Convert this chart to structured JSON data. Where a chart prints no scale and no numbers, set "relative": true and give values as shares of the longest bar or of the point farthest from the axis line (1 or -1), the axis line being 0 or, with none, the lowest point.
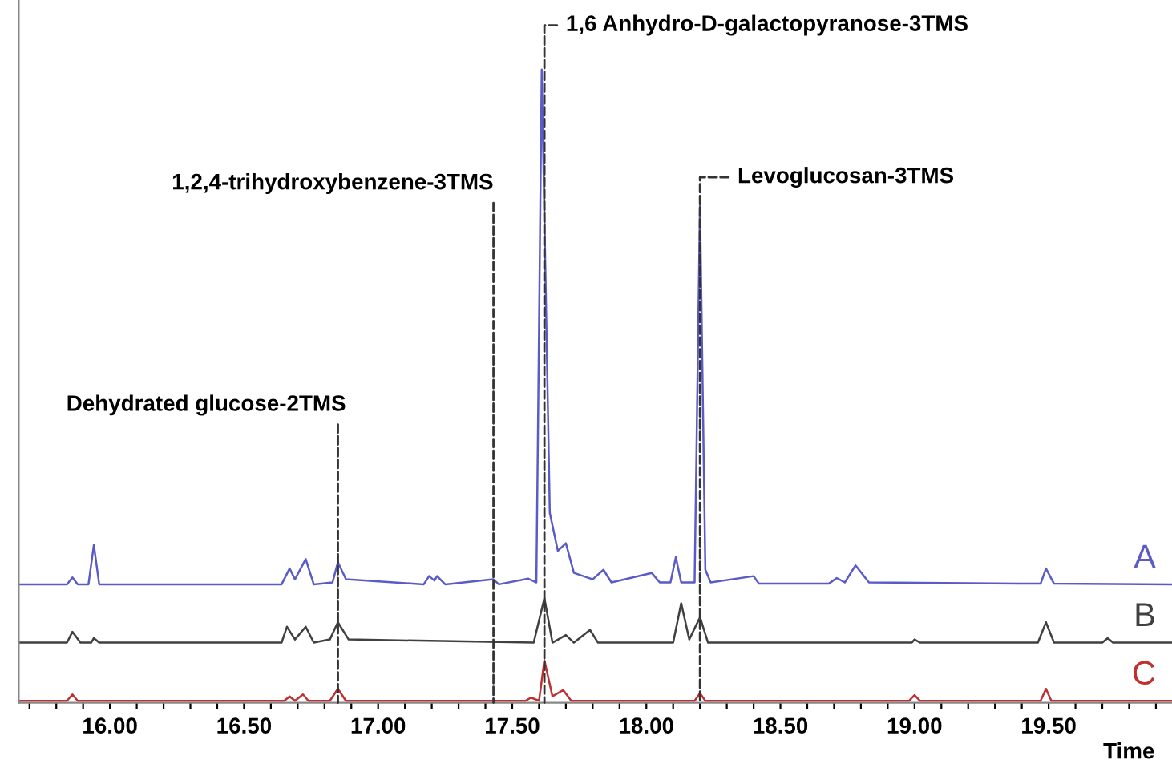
{
  "chart_data": {
    "type": "line",
    "relative": true,
    "xlabel": "Time",
    "xlim": [
      15.66,
      19.96
    ],
    "xticks": [
      {
        "value": 15.7,
        "label": null
      },
      {
        "value": 15.8,
        "label": null
      },
      {
        "value": 15.9,
        "label": null
      },
      {
        "value": 16,
        "label": "16.00"
      },
      {
        "value": 16.1,
        "label": null
      },
      {
        "value": 16.2,
        "label": null
      },
      {
        "value": 16.3,
        "label": null
      },
      {
        "value": 16.4,
        "label": null
      },
      {
        "value": 16.5,
        "label": "16.50"
      },
      {
        "value": 16.6,
        "label": null
      },
      {
        "value": 16.7,
        "label": null
      },
      {
        "value": 16.8,
        "label": null
      },
      {
        "value": 16.9,
        "label": null
      },
      {
        "value": 17,
        "label": "17.00"
      },
      {
        "value": 17.1,
        "label": null
      },
      {
        "value": 17.2,
        "label": null
      },
      {
        "value": 17.3,
        "label": null
      },
      {
        "value": 17.4,
        "label": null
      },
      {
        "value": 17.5,
        "label": "17.50"
      },
      {
        "value": 17.6,
        "label": null
      },
      {
        "value": 17.7,
        "label": null
      },
      {
        "value": 17.8,
        "label": null
      },
      {
        "value": 17.9,
        "label": null
      },
      {
        "value": 18,
        "label": "18.00"
      },
      {
        "value": 18.1,
        "label": null
      },
      {
        "value": 18.2,
        "label": null
      },
      {
        "value": 18.3,
        "label": null
      },
      {
        "value": 18.4,
        "label": null
      },
      {
        "value": 18.5,
        "label": "18.50"
      },
      {
        "value": 18.6,
        "label": null
      },
      {
        "value": 18.7,
        "label": null
      },
      {
        "value": 18.8,
        "label": null
      },
      {
        "value": 18.9,
        "label": null
      },
      {
        "value": 19,
        "label": "19.00"
      },
      {
        "value": 19.1,
        "label": null
      },
      {
        "value": 19.2,
        "label": null
      },
      {
        "value": 19.3,
        "label": null
      },
      {
        "value": 19.4,
        "label": null
      },
      {
        "value": 19.5,
        "label": "19.50"
      },
      {
        "value": 19.6,
        "label": null
      },
      {
        "value": 19.7,
        "label": null
      },
      {
        "value": 19.8,
        "label": null
      },
      {
        "value": 19.9,
        "label": null
      }
    ],
    "series": [
      {
        "name": "A",
        "color": "#5b5bc8",
        "x": [
          15.66,
          15.84,
          15.86,
          15.88,
          15.92,
          15.94,
          15.96,
          16.64,
          16.67,
          16.69,
          16.73,
          16.76,
          16.83,
          16.85,
          16.88,
          17.17,
          17.19,
          17.21,
          17.22,
          17.25,
          17.43,
          17.45,
          17.56,
          17.59,
          17.61,
          17.64,
          17.67,
          17.7,
          17.73,
          17.8,
          17.84,
          17.87,
          18.02,
          18.05,
          18.09,
          18.11,
          18.13,
          18.18,
          18.2,
          18.22,
          18.24,
          18.4,
          18.42,
          18.68,
          18.71,
          18.74,
          18.78,
          18.83,
          19.47,
          19.49,
          19.52,
          19.96
        ],
        "values": [
          0.187,
          0.187,
          0.198,
          0.187,
          0.187,
          0.249,
          0.187,
          0.187,
          0.212,
          0.195,
          0.227,
          0.187,
          0.19,
          0.222,
          0.195,
          0.187,
          0.2,
          0.193,
          0.2,
          0.187,
          0.195,
          0.187,
          0.196,
          0.19,
          1.0,
          0.3,
          0.24,
          0.252,
          0.205,
          0.195,
          0.21,
          0.19,
          0.205,
          0.19,
          0.19,
          0.23,
          0.19,
          0.19,
          0.788,
          0.21,
          0.19,
          0.2,
          0.188,
          0.188,
          0.197,
          0.19,
          0.217,
          0.19,
          0.188,
          0.212,
          0.188,
          0.187
        ]
      },
      {
        "name": "B",
        "color": "#404040",
        "x": [
          15.66,
          15.84,
          15.86,
          15.89,
          15.93,
          15.94,
          15.96,
          16.64,
          16.66,
          16.69,
          16.73,
          16.76,
          16.82,
          16.85,
          16.89,
          17.58,
          17.62,
          17.65,
          17.7,
          17.73,
          17.79,
          17.82,
          18.1,
          18.13,
          18.16,
          18.2,
          18.23,
          18.99,
          19.0,
          19.02,
          19.46,
          19.49,
          19.52,
          19.7,
          19.72,
          19.74,
          19.96
        ],
        "values": [
          0.095,
          0.095,
          0.112,
          0.095,
          0.095,
          0.102,
          0.095,
          0.095,
          0.12,
          0.1,
          0.12,
          0.095,
          0.1,
          0.127,
          0.1,
          0.095,
          0.165,
          0.095,
          0.107,
          0.095,
          0.115,
          0.095,
          0.095,
          0.157,
          0.1,
          0.135,
          0.095,
          0.095,
          0.1,
          0.095,
          0.095,
          0.127,
          0.095,
          0.095,
          0.102,
          0.095,
          0.095
        ]
      },
      {
        "name": "C",
        "color": "#c03030",
        "x": [
          15.66,
          15.84,
          15.86,
          15.88,
          16.65,
          16.67,
          16.69,
          16.72,
          16.74,
          16.82,
          16.85,
          16.88,
          17.55,
          17.57,
          17.6,
          17.62,
          17.65,
          17.69,
          17.72,
          18.18,
          18.2,
          18.22,
          18.98,
          19.0,
          19.02,
          19.47,
          19.49,
          19.51,
          19.96
        ],
        "values": [
          0.003,
          0.003,
          0.013,
          0.003,
          0.003,
          0.01,
          0.003,
          0.013,
          0.003,
          0.003,
          0.022,
          0.003,
          0.003,
          0.008,
          0.003,
          0.067,
          0.01,
          0.02,
          0.003,
          0.003,
          0.015,
          0.003,
          0.003,
          0.012,
          0.003,
          0.003,
          0.022,
          0.003,
          0.003
        ]
      }
    ],
    "annotations": [
      {
        "text": "Dehydrated glucose-2TMS",
        "x": 16.85,
        "y": 0
      },
      {
        "text": "1,2,4-trihydroxybenzene-3TMS",
        "x": 17.43,
        "y": 0
      },
      {
        "text": "1,6 Anhydro-D-galactopyranose-3TMS",
        "x": 17.62,
        "y": 0
      },
      {
        "text": "Levoglucosan-3TMS",
        "x": 18.2,
        "y": 0
      }
    ]
  }
}
